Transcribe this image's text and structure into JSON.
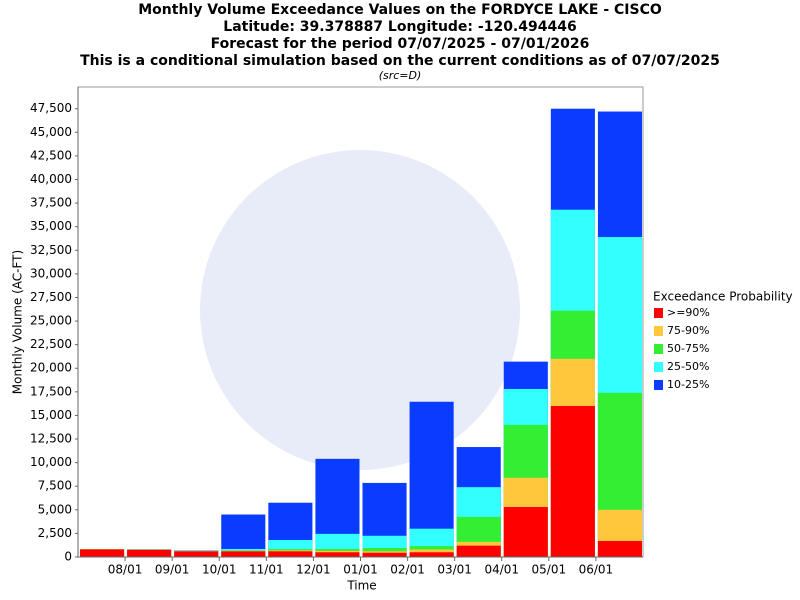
{
  "chart_data": {
    "type": "bar",
    "barmode": "overlay",
    "title": "Monthly Volume Exceedance Values on the FORDYCE LAKE - CISCO",
    "subtitle": [
      "Latitude: 39.378887 Longitude: -120.494446",
      "Forecast for the period 07/07/2025 - 07/01/2026",
      "This is a conditional simulation based on the current conditions as of 07/07/2025"
    ],
    "source": "(src=D)",
    "xlabel": "Time",
    "ylabel": "Monthly Volume (AC-FT)",
    "legend_title": "Exceedance Probability",
    "legend_position": "right",
    "categories": [
      null,
      null,
      null,
      null,
      null,
      null,
      null,
      null,
      null,
      null,
      null,
      null
    ],
    "xticks": [
      "08/01",
      "09/01",
      "10/01",
      "11/01",
      "12/01",
      "01/01",
      "02/01",
      "03/01",
      "04/01",
      "05/01",
      "06/01"
    ],
    "ylim": [
      0,
      49800
    ],
    "yticks": [
      0,
      {
        "value": 2500,
        "label": "2,500"
      },
      {
        "value": 5000,
        "label": "5,000"
      },
      {
        "value": 7500,
        "label": "7,500"
      },
      {
        "value": 10000,
        "label": "10,000"
      },
      {
        "value": 12500,
        "label": "12,500"
      },
      {
        "value": 15000,
        "label": "15,000"
      },
      {
        "value": 17500,
        "label": "17,500"
      },
      {
        "value": 20000,
        "label": "20,000"
      },
      {
        "value": 22500,
        "label": "22,500"
      },
      {
        "value": 25000,
        "label": "25,000"
      },
      {
        "value": 27500,
        "label": "27,500"
      },
      {
        "value": 30000,
        "label": "30,000"
      },
      {
        "value": 32500,
        "label": "32,500"
      },
      {
        "value": 35000,
        "label": "35,000"
      },
      {
        "value": 37500,
        "label": "37,500"
      },
      {
        "value": 40000,
        "label": "40,000"
      },
      {
        "value": 42500,
        "label": "42,500"
      },
      {
        "value": 45000,
        "label": "45,000"
      },
      {
        "value": 47500,
        "label": "47,500"
      }
    ],
    "series": [
      {
        "name": ">=90%",
        "color": "#ff0000",
        "values": [
          800,
          750,
          600,
          600,
          600,
          500,
          450,
          500,
          1200,
          5300,
          16000,
          1700
        ]
      },
      {
        "name": "75-90%",
        "color": "#ffc83c",
        "values": [
          820,
          770,
          620,
          650,
          700,
          650,
          600,
          800,
          1600,
          8400,
          21000,
          5000
        ]
      },
      {
        "name": "50-75%",
        "color": "#33ee33",
        "values": [
          830,
          790,
          640,
          700,
          850,
          850,
          950,
          1150,
          4250,
          14000,
          26100,
          17400
        ]
      },
      {
        "name": "25-50%",
        "color": "#33ffff",
        "values": [
          840,
          800,
          670,
          850,
          1800,
          2450,
          2250,
          3000,
          7400,
          17800,
          36800,
          33900
        ]
      },
      {
        "name": "10-25%",
        "color": "#0a3cff",
        "values": [
          850,
          820,
          700,
          4500,
          5750,
          10400,
          7850,
          16450,
          11650,
          20700,
          47500,
          47200
        ]
      }
    ]
  }
}
